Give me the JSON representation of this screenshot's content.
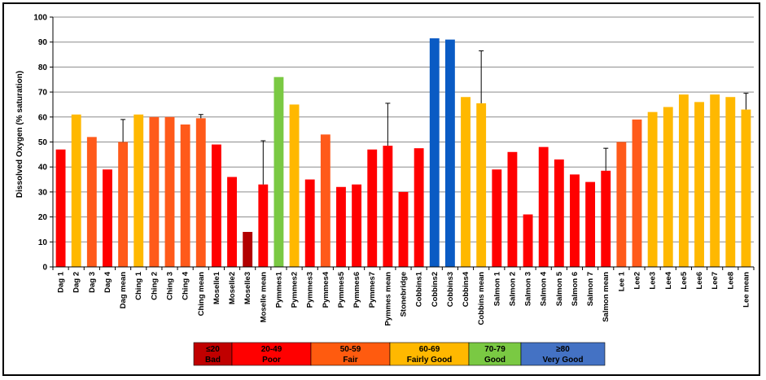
{
  "chart_data": {
    "type": "bar",
    "title": "",
    "xlabel": "",
    "ylabel": "Dissolved Oxygen (% saturation)",
    "ylim": [
      0,
      100
    ],
    "yticks": [
      0,
      10,
      20,
      30,
      40,
      50,
      60,
      70,
      80,
      90,
      100
    ],
    "grid": true,
    "categories": [
      "Dag 1",
      "Dag 2",
      "Dag 3",
      "Dag 4",
      "Dag mean",
      "Ching 1",
      "Ching 2",
      "Ching 3",
      "Ching 4",
      "Ching mean",
      "Moselle1",
      "Moselle2",
      "Moselle3",
      "Moselle mean",
      "Pymmes1",
      "Pymmes2",
      "Pymmes3",
      "Pymmes4",
      "Pymmes5",
      "Pymmes6",
      "Pymmes7",
      "Pymmes mean",
      "Stonebridge",
      "Cobbins1",
      "Cobbins2",
      "Cobbins3",
      "Cobbins4",
      "Cobbins mean",
      "Salmon 1",
      "Salmon 2",
      "Salmon 3",
      "Salmon 4",
      "Salmon 5",
      "Salmon 6",
      "Salmon 7",
      "Salmon mean",
      "Lee 1",
      "Lee2",
      "Lee3",
      "Lee4",
      "Lee5",
      "Lee6",
      "Lee7",
      "Lee8",
      "Lee mean"
    ],
    "values": [
      47,
      61,
      52,
      39,
      50,
      61,
      60,
      60,
      57,
      59.5,
      49,
      36,
      14,
      33,
      76,
      65,
      35,
      53,
      32,
      33,
      47,
      48.5,
      30,
      47.5,
      91.5,
      91,
      68,
      65.5,
      39,
      46,
      21,
      48,
      43,
      37,
      34,
      38.5,
      50,
      59,
      62,
      64,
      69,
      66,
      69,
      68,
      63
    ],
    "error_upper": [
      null,
      null,
      null,
      null,
      59,
      null,
      null,
      null,
      null,
      61,
      null,
      null,
      null,
      50.5,
      null,
      null,
      null,
      null,
      null,
      null,
      null,
      65.5,
      null,
      null,
      null,
      null,
      null,
      86.5,
      null,
      null,
      null,
      null,
      null,
      null,
      null,
      47.5,
      null,
      null,
      null,
      null,
      null,
      null,
      null,
      null,
      69.5
    ],
    "classes": [
      "Poor",
      "Fairly Good",
      "Fair",
      "Poor",
      "Fair",
      "Fairly Good",
      "Fair",
      "Fair",
      "Fair",
      "Fair",
      "Poor",
      "Poor",
      "Bad",
      "Poor",
      "Good",
      "Fairly Good",
      "Poor",
      "Fair",
      "Poor",
      "Poor",
      "Poor",
      "Poor",
      "Poor",
      "Poor",
      "Very Good",
      "Very Good",
      "Fairly Good",
      "Fairly Good",
      "Poor",
      "Poor",
      "Poor",
      "Poor",
      "Poor",
      "Poor",
      "Poor",
      "Poor",
      "Fair",
      "Fair",
      "Fairly Good",
      "Fairly Good",
      "Fairly Good",
      "Fairly Good",
      "Fairly Good",
      "Fairly Good",
      "Fairly Good"
    ],
    "legend": {
      "placement": "bottom-center",
      "items": [
        {
          "range": "≤20",
          "label": "Bad",
          "color": "#C00000"
        },
        {
          "range": "20-49",
          "label": "Poor",
          "color": "#FF0000"
        },
        {
          "range": "50-59",
          "label": "Fair",
          "color": "#FF5B0F"
        },
        {
          "range": "60-69",
          "label": "Fairly Good",
          "color": "#FFB800"
        },
        {
          "range": "70-79",
          "label": "Good",
          "color": "#7AC943"
        },
        {
          "range": "≥80",
          "label": "Very Good",
          "color": "#4472C4"
        }
      ]
    },
    "bar_colors": {
      "Bad": "#B20000",
      "Poor": "#FF0000",
      "Fair": "#FF5A1A",
      "Fairly Good": "#FFB800",
      "Good": "#7AC943",
      "Very Good": "#0A5BC4"
    }
  }
}
